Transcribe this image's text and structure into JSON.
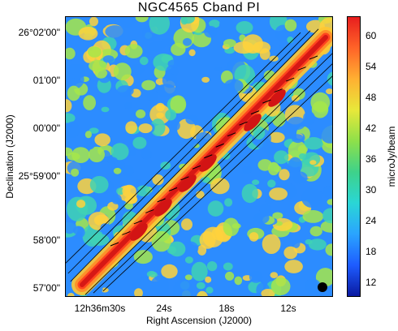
{
  "title": "NGC4565  Cband  PI",
  "y_axis": {
    "label": "Declination (J2000)",
    "ticks": [
      "26°02'00\"",
      "01'00\"",
      "00'00\"",
      "25°59'00\"",
      "58'00\"",
      "57'00\""
    ]
  },
  "x_axis": {
    "label": "Right Ascension (J2000)",
    "ticks": [
      "12h36m30s",
      "24s",
      "18s",
      "12s"
    ]
  },
  "colorbar": {
    "label": "microJy/beam",
    "ticks": [
      "60",
      "54",
      "48",
      "42",
      "36",
      "30",
      "24",
      "18",
      "12"
    ],
    "colors": [
      "#0a1aa0",
      "#1e5cff",
      "#2aa4ff",
      "#2ad6d6",
      "#3ed28a",
      "#8ee04a",
      "#e8e83a",
      "#ffb032",
      "#ff6428",
      "#e81e1e"
    ]
  },
  "image": {
    "beam_marker": "beam-icon",
    "background_colors": [
      "#2c8cff",
      "#3fd2b4",
      "#a6e64a",
      "#ffd23c"
    ],
    "emission_colors": [
      "#ffc832",
      "#ff8c28",
      "#ff3c1e",
      "#d21414"
    ]
  }
}
